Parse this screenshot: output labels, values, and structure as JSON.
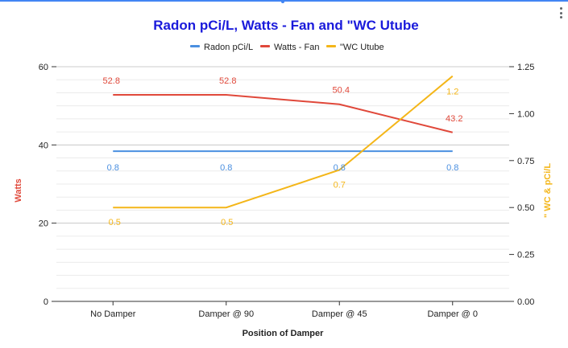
{
  "chart_data": {
    "type": "line",
    "title": "Radon pCi/L, Watts - Fan and \"WC Utube",
    "title_color": "#1a1adb",
    "xlabel": "Position of Damper",
    "ylabel_left": "Watts",
    "ylabel_right": "\" WC & pCi/L",
    "categories": [
      "No Damper",
      "Damper @ 90",
      "Damper @ 45",
      "Damper @ 0"
    ],
    "ylim_left": [
      0,
      60
    ],
    "ylim_right": [
      0,
      1.25
    ],
    "yticks_left": [
      "0",
      "20",
      "40",
      "60"
    ],
    "yticks_right": [
      "0.00",
      "0.25",
      "0.50",
      "0.75",
      "1.00",
      "1.25"
    ],
    "grid": true,
    "legend_position": "top",
    "series": [
      {
        "name": "Radon pCi/L",
        "axis": "right",
        "color": "#4a8fe0",
        "values": [
          0.8,
          0.8,
          0.8,
          0.8
        ],
        "labels": [
          "0.8",
          "0.8",
          "0.8",
          "0.8"
        ]
      },
      {
        "name": "Watts - Fan",
        "axis": "left",
        "color": "#e0483a",
        "values": [
          52.8,
          52.8,
          50.4,
          43.2
        ],
        "labels": [
          "52.8",
          "52.8",
          "50.4",
          "43.2"
        ]
      },
      {
        "name": "\"WC Utube",
        "axis": "right",
        "color": "#f4b619",
        "values": [
          0.5,
          0.5,
          0.7,
          1.2
        ],
        "labels": [
          "0.5",
          "0.5",
          "0.7",
          "1.2"
        ]
      }
    ]
  },
  "ui": {
    "accent_color": "#4285f4",
    "menu_icon": "more-vert-icon"
  }
}
